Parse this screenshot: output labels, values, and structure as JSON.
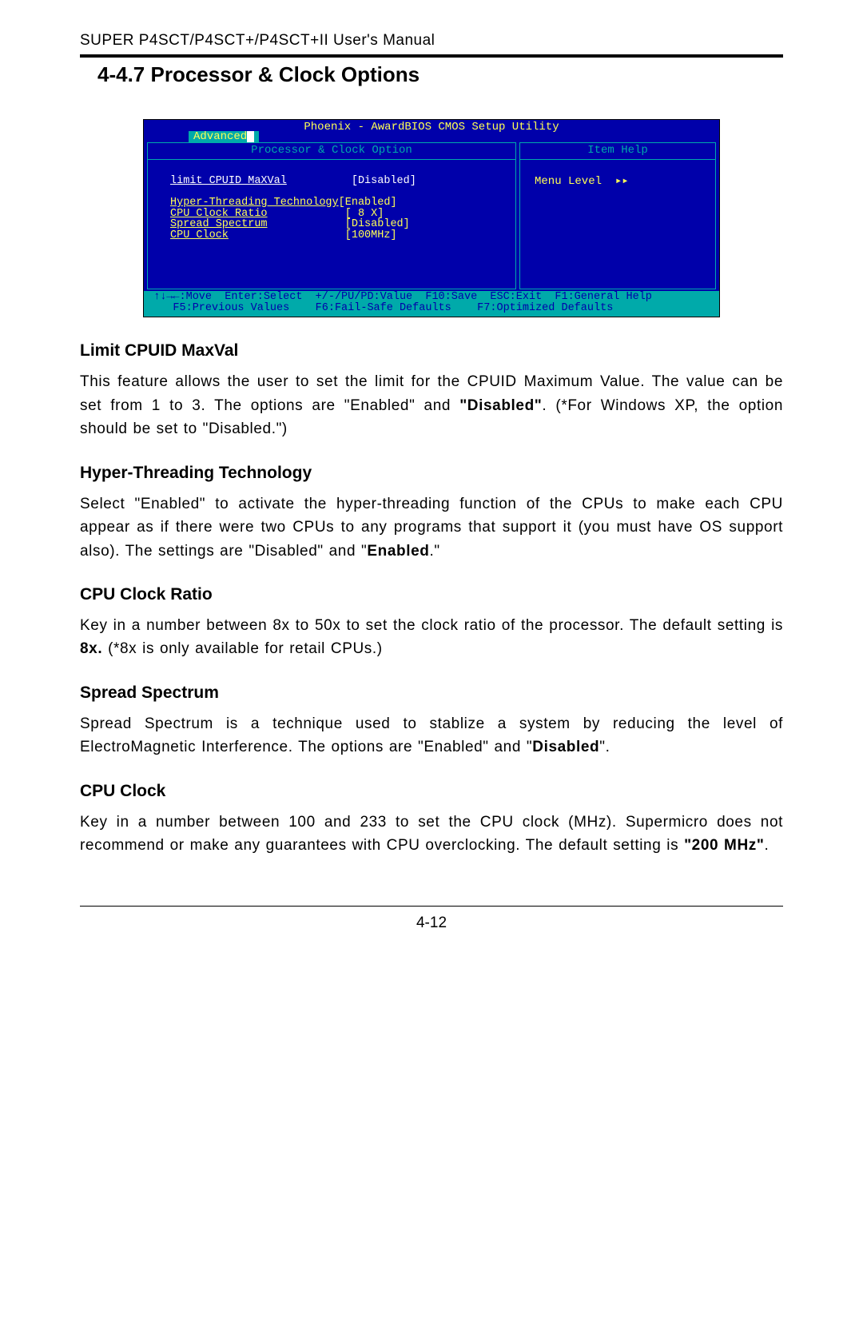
{
  "header": "SUPER P4SCT/P4SCT+/P4SCT+II  User's Manual",
  "section_title": "4-4.7  Processor & Clock Options",
  "bios": {
    "window_title": "Phoenix - AwardBIOS CMOS Setup Utility",
    "tab_label": "Advanced",
    "left_header": "Processor & Clock Option",
    "right_header": "Item Help",
    "menu_level_label": "Menu Level",
    "menu_level_arrow": "▸▸",
    "options": [
      {
        "label": "limit CPUID MaXVal",
        "value": "[Disabled]"
      },
      {
        "label": "Hyper-Threading Technology",
        "value": "[Enabled]"
      },
      {
        "label": "CPU Clock Ratio",
        "value": "[ 8 X]"
      },
      {
        "label": "Spread Spectrum",
        "value": "[Disabled]"
      },
      {
        "label": "CPU Clock",
        "value": "[100MHz]"
      }
    ],
    "footer_line1": " ↑↓→←:Move  Enter:Select  +/-/PU/PD:Value  F10:Save  ESC:Exit  F1:General Help",
    "footer_line2": "    F5:Previous Values    F6:Fail-Safe Defaults    F7:Optimized Defaults",
    "colors": {
      "bg": "#0000aa",
      "panel_border": "#00aaaa",
      "text_highlight": "#ffff55",
      "text_normal": "#ffffff",
      "footer_bg": "#00aaaa",
      "footer_fg": "#0000aa"
    }
  },
  "sections": {
    "limit_cpuid": {
      "title": "Limit CPUID MaxVal",
      "p1a": "This  feature  allows the user to set the limit for the CPUID Maximum Value. The value can be set from 1 to 3. The options are \"Enabled\" and ",
      "p1b": "\"Disabled\"",
      "p1c": ". (*For Windows XP,  the option should be set to \"Disabled.\")"
    },
    "hyper_threading": {
      "title": "Hyper-Threading Technology",
      "p1a": "Select \"Enabled\" to activate the hyper-threading function of the CPUs to make each CPU appear as if there were two CPUs to any programs that support it (you must have OS support also).  The settings are \"Disabled\" and \"",
      "p1b": "Enabled",
      "p1c": ".\""
    },
    "cpu_clock_ratio": {
      "title": "CPU Clock Ratio",
      "p1a": "Key in a number between 8x to 50x to set the clock ratio of the processor. The default setting is ",
      "p1b": "8x.",
      "p1c": " (*8x is only available for retail CPUs.)"
    },
    "spread_spectrum": {
      "title": "Spread Spectrum",
      "p1a": "Spread Spectrum is a technique used to stablize a system by reducing the level of ElectroMagnetic Interference. The options are \"Enabled\" and \"",
      "p1b": "Disabled",
      "p1c": "\"."
    },
    "cpu_clock": {
      "title": "CPU Clock",
      "p1a": "Key in a number between 100 and 233 to set the CPU clock (MHz). Supermicro does not recommend or make any guarantees with CPU overclocking. The default setting is ",
      "p1b": "\"200 MHz\"",
      "p1c": "."
    }
  },
  "page_number": "4-12"
}
